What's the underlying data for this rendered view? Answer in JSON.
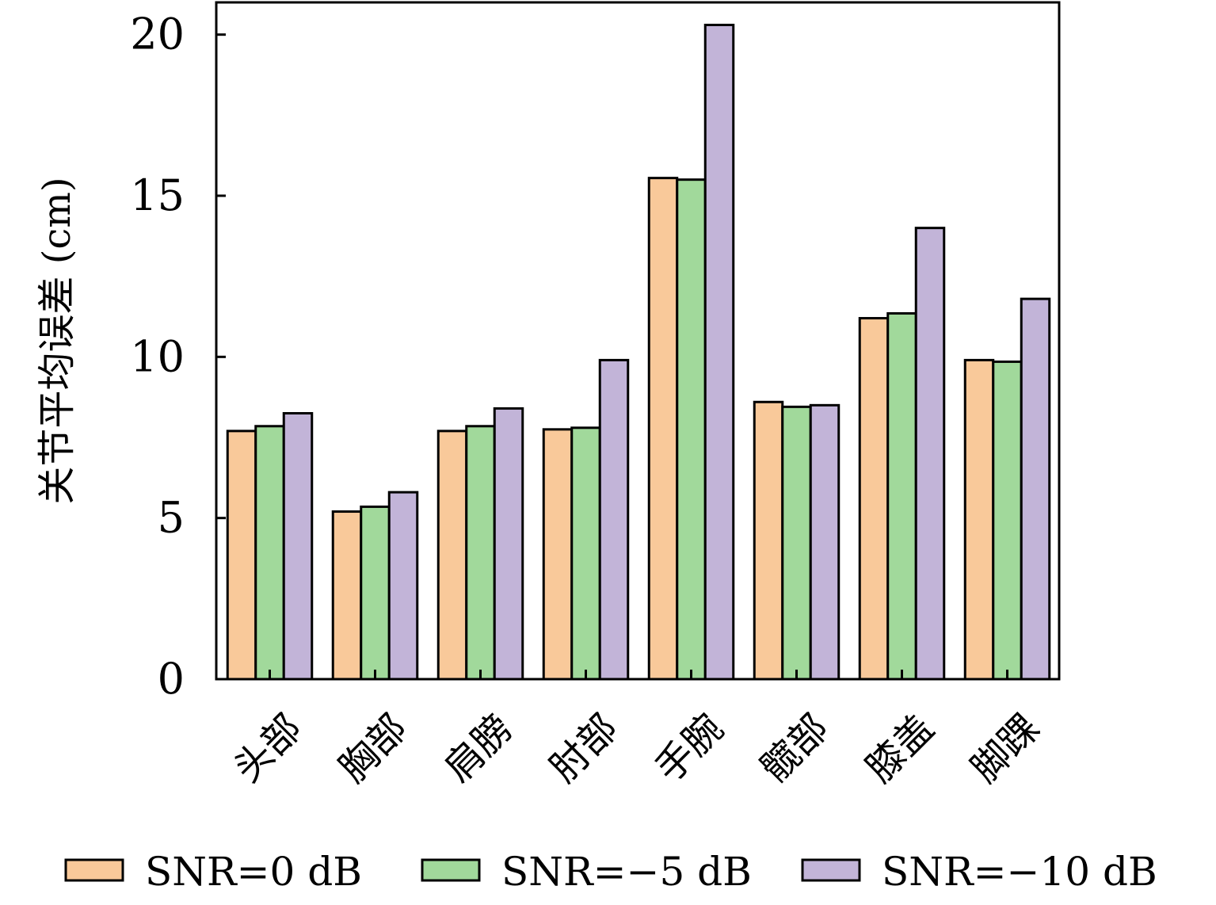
{
  "chart_data": {
    "type": "bar",
    "title": "",
    "xlabel": "",
    "ylabel": "关节平均误差 (cm)",
    "ylim": [
      0,
      21
    ],
    "yticks": [
      0,
      5,
      10,
      15,
      20
    ],
    "grid": false,
    "legend_position": "bottom",
    "categories": [
      "头部",
      "胸部",
      "肩膀",
      "肘部",
      "手腕",
      "髋部",
      "膝盖",
      "脚踝"
    ],
    "series": [
      {
        "name": "SNR=0 dB",
        "color": "#f9c99a",
        "values": [
          7.7,
          5.2,
          7.7,
          7.75,
          15.55,
          8.6,
          11.2,
          9.9
        ]
      },
      {
        "name": "SNR=−5 dB",
        "color": "#a1d99b",
        "values": [
          7.85,
          5.35,
          7.85,
          7.8,
          15.5,
          8.45,
          11.35,
          9.85
        ]
      },
      {
        "name": "SNR=−10 dB",
        "color": "#c2b4d8",
        "values": [
          8.25,
          5.8,
          8.4,
          9.9,
          20.3,
          8.5,
          14.0,
          11.8
        ]
      }
    ]
  }
}
